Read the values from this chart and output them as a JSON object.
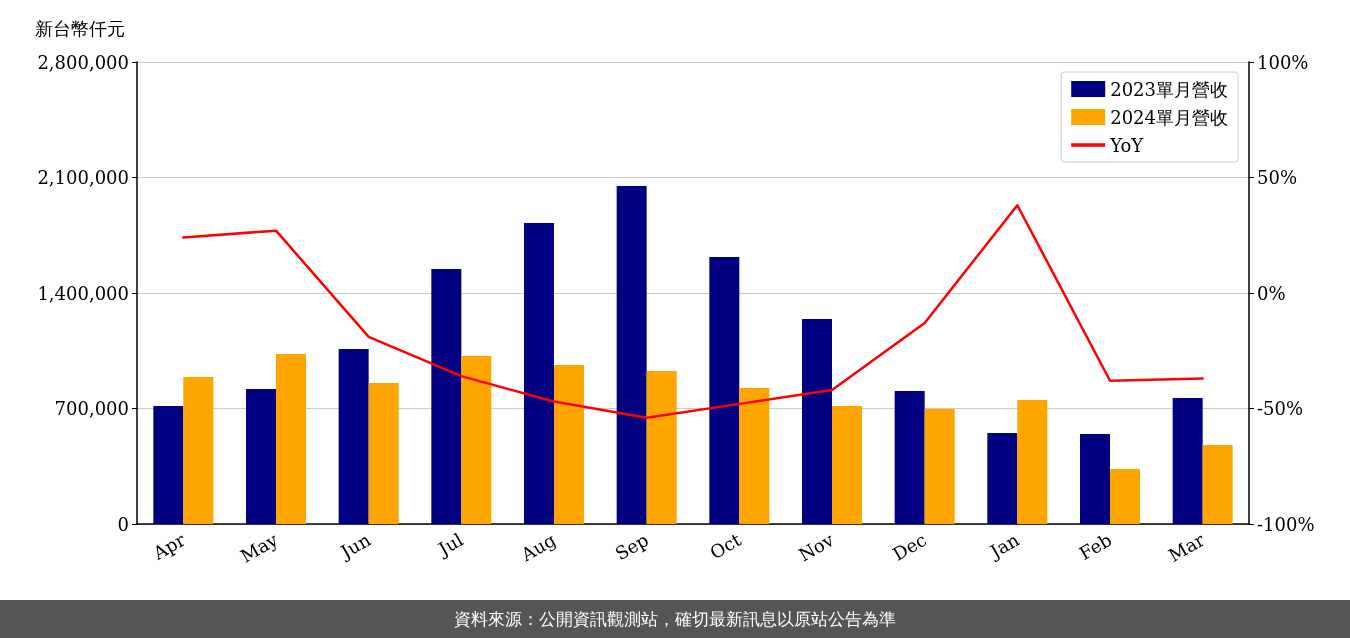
{
  "chart_data": {
    "type": "bar",
    "ylabel": "新台幣仟元",
    "categories": [
      "Apr",
      "May",
      "Jun",
      "Jul",
      "Aug",
      "Sep",
      "Oct",
      "Nov",
      "Dec",
      "Jan",
      "Feb",
      "Mar"
    ],
    "series": [
      {
        "name": "2023單月營收",
        "color": "#000080",
        "values": [
          715000,
          818000,
          1061000,
          1545000,
          1824000,
          2048000,
          1618000,
          1242000,
          806000,
          552000,
          545000,
          764000
        ]
      },
      {
        "name": "2024單月營收",
        "color": "#ffa500",
        "values": [
          891000,
          1030000,
          855000,
          1018000,
          964000,
          927000,
          824000,
          715000,
          697000,
          752000,
          333000,
          479000
        ]
      },
      {
        "name": "YoY",
        "type": "line",
        "axis": "y2",
        "color": "#ff0000",
        "values": [
          24,
          27,
          -19,
          -36,
          -47,
          -54,
          -48,
          -42,
          -13,
          38,
          -38,
          -37
        ]
      }
    ],
    "ylim": [
      0,
      2800000
    ],
    "yticks": [
      {
        "value": 0,
        "label": "0"
      },
      {
        "value": 700000,
        "label": "700,000"
      },
      {
        "value": 1400000,
        "label": "1,400,000"
      },
      {
        "value": 2100000,
        "label": "2,100,000"
      },
      {
        "value": 2800000,
        "label": "2,800,000"
      }
    ],
    "y2lim": [
      -100,
      100
    ],
    "y2ticks": [
      {
        "value": -100,
        "label": "-100%"
      },
      {
        "value": -50,
        "label": "-50%"
      },
      {
        "value": 0,
        "label": "0%"
      },
      {
        "value": 50,
        "label": "50%"
      },
      {
        "value": 100,
        "label": "100%"
      }
    ],
    "grid": "y",
    "legend": "top right",
    "marker": "none",
    "line_style": "solid",
    "annotations": [
      "資料來源：公開資訊觀測站，確切最新訊息以原站公告為準"
    ]
  }
}
